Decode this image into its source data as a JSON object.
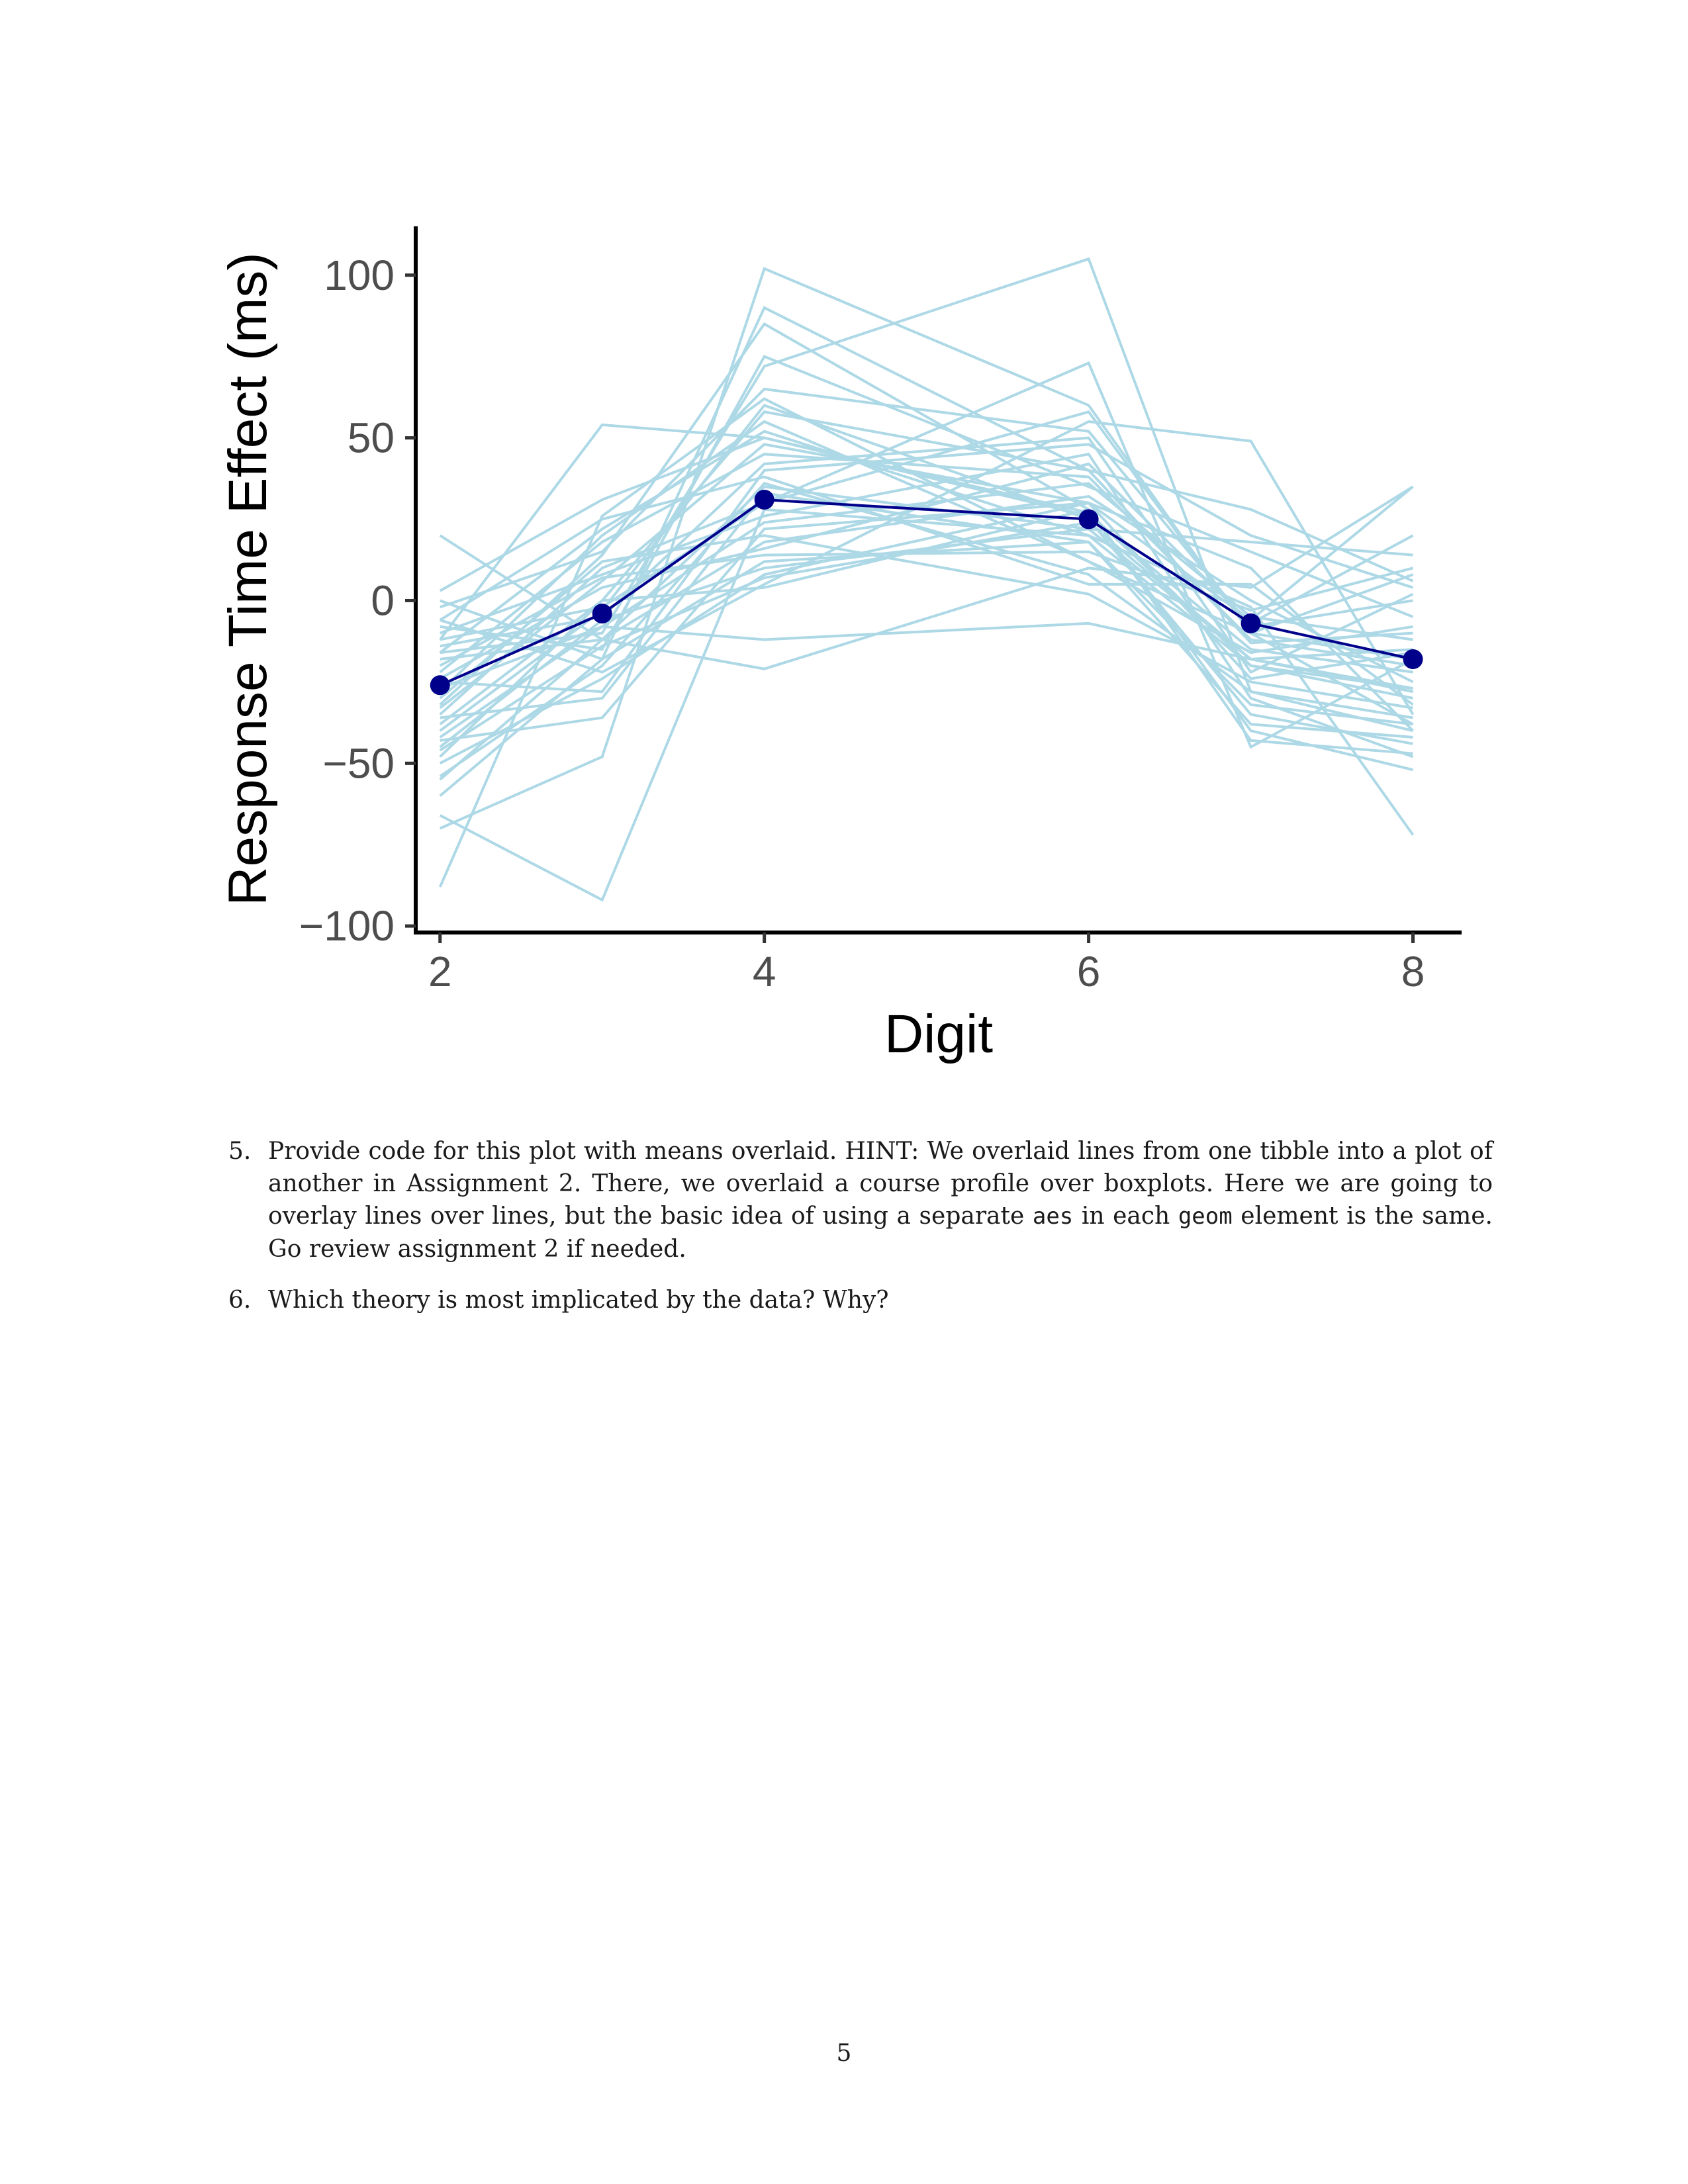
{
  "chart_data": {
    "type": "line",
    "xlabel": "Digit",
    "ylabel": "Response Time Effect (ms)",
    "x": [
      2,
      3,
      4,
      6,
      7,
      8
    ],
    "xticks": [
      2,
      4,
      6,
      8
    ],
    "yticks": [
      -100,
      -50,
      0,
      50,
      100
    ],
    "xlim": [
      1.85,
      8.3
    ],
    "ylim": [
      -102,
      115
    ],
    "grid": false,
    "colors": {
      "individual": "#add8e6",
      "mean": "#00008b"
    },
    "mean_series": {
      "values": [
        -26,
        -4,
        31,
        25,
        -7,
        -18
      ]
    },
    "individual_series": [
      [
        20,
        -12,
        35,
        22,
        -18,
        -28
      ],
      [
        3,
        31,
        50,
        26,
        -15,
        -22
      ],
      [
        -88,
        26,
        62,
        12,
        -10,
        -38
      ],
      [
        -12,
        54,
        50,
        27,
        -20,
        -27
      ],
      [
        -16,
        -10,
        72,
        105,
        -28,
        -40
      ],
      [
        -70,
        -48,
        102,
        60,
        -10,
        -18
      ],
      [
        -66,
        -92,
        28,
        20,
        -2,
        -72
      ],
      [
        -43,
        -36,
        22,
        30,
        10,
        -40
      ],
      [
        -55,
        -12,
        -21,
        10,
        4,
        35
      ],
      [
        -27,
        -8,
        -12,
        -7,
        -18,
        -15
      ],
      [
        -32,
        14,
        85,
        28,
        -43,
        -47
      ],
      [
        -48,
        0,
        58,
        40,
        28,
        6
      ],
      [
        -6,
        -22,
        5,
        55,
        49,
        -35
      ],
      [
        -24,
        4,
        16,
        42,
        -7,
        20
      ],
      [
        -35,
        10,
        30,
        73,
        -45,
        -18
      ],
      [
        -50,
        -24,
        8,
        30,
        -6,
        35
      ],
      [
        -6,
        25,
        38,
        5,
        5,
        -32
      ],
      [
        -60,
        -18,
        90,
        40,
        -13,
        -10
      ],
      [
        -20,
        7,
        14,
        15,
        -3,
        10
      ],
      [
        -40,
        -3,
        60,
        25,
        -35,
        -44
      ],
      [
        -14,
        -5,
        42,
        50,
        -22,
        2
      ],
      [
        -30,
        12,
        20,
        2,
        -25,
        -33
      ],
      [
        -8,
        -15,
        75,
        35,
        15,
        -5
      ],
      [
        -36,
        -30,
        33,
        18,
        -38,
        -42
      ],
      [
        -22,
        18,
        45,
        38,
        -12,
        -20
      ],
      [
        -45,
        -6,
        10,
        22,
        18,
        14
      ],
      [
        -10,
        8,
        26,
        45,
        -30,
        -48
      ],
      [
        -28,
        20,
        55,
        12,
        -16,
        -8
      ],
      [
        -18,
        -12,
        18,
        32,
        0,
        -25
      ],
      [
        -54,
        -20,
        36,
        8,
        -28,
        -36
      ],
      [
        -2,
        15,
        65,
        52,
        -8,
        0
      ],
      [
        -38,
        0,
        4,
        28,
        -40,
        -52
      ],
      [
        -25,
        -28,
        40,
        48,
        20,
        4
      ],
      [
        -16,
        22,
        52,
        20,
        -20,
        -30
      ],
      [
        -42,
        -8,
        24,
        36,
        -5,
        -12
      ],
      [
        0,
        -18,
        12,
        18,
        -32,
        -38
      ],
      [
        -33,
        6,
        48,
        30,
        -24,
        -16
      ],
      [
        -12,
        -2,
        30,
        58,
        -10,
        8
      ],
      [
        -46,
        -14,
        7,
        24,
        -18,
        -27
      ]
    ]
  },
  "questions": [
    {
      "number": "5.",
      "text_1": "Provide code for this plot with means overlaid. HINT: We overlaid lines from one tibble into a plot of another in Assignment 2. There, we overlaid a course profile over boxplots. Here we are going to overlay lines over lines, but the basic idea of using a separate",
      "code_1": "aes",
      "text_2": "in each",
      "code_2": "geom",
      "text_3": "element is the same. Go review assignment 2 if needed."
    },
    {
      "number": "6.",
      "text_1": "Which theory is most implicated by the data? Why?"
    }
  ],
  "page_number": "5"
}
